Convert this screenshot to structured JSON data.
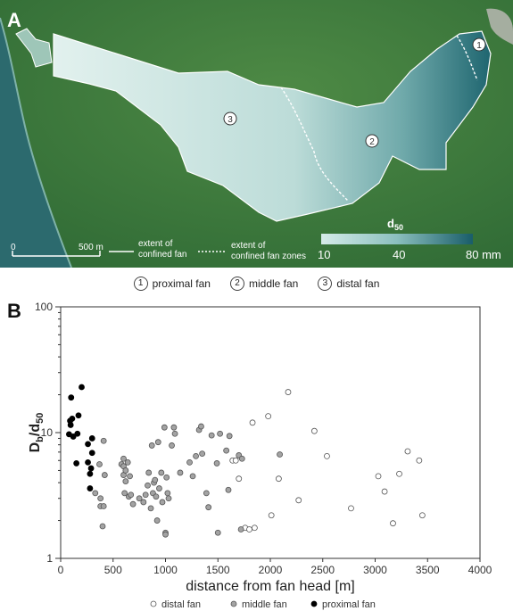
{
  "panel_a": {
    "label": "A",
    "scalebar": {
      "zero": "0",
      "value": "500 m"
    },
    "legend_lines": {
      "solid": [
        "extent of",
        "confined fan"
      ],
      "dotted": [
        "extent of",
        "confined fan zones"
      ]
    },
    "colorbar": {
      "title": "d",
      "title_sub": "50",
      "ticks": [
        "10",
        "40",
        "80 mm"
      ],
      "colors": [
        "#d5ebe8",
        "#8bbfbe",
        "#195d69"
      ]
    },
    "zone_markers": [
      "1",
      "2",
      "3"
    ],
    "colors": {
      "sea": "#2c6a6e",
      "land": "#3f7a3a",
      "fan_light": "#d9eeea",
      "fan_dark": "#2a7078"
    }
  },
  "zones_legend": [
    {
      "num": "1",
      "label": "proximal fan"
    },
    {
      "num": "2",
      "label": "middle fan"
    },
    {
      "num": "3",
      "label": "distal fan"
    }
  ],
  "chart_data": {
    "panel_label": "B",
    "type": "scatter",
    "xlabel": "distance from fan head [m]",
    "ylabel_main": "D",
    "ylabel_sub1": "b",
    "ylabel_mid": "/d",
    "ylabel_sub2": "50",
    "xlim": [
      0,
      4000
    ],
    "ylim": [
      1,
      100
    ],
    "yscale": "log",
    "xticks": [
      0,
      500,
      1000,
      1500,
      2000,
      2500,
      3000,
      3500,
      4000
    ],
    "yticks": [
      1,
      10,
      100
    ],
    "legend_position": "bottom",
    "series": [
      {
        "name": "distal fan",
        "style": "open",
        "color": "#ffffff",
        "points": [
          [
            1640,
            6.0
          ],
          [
            1670,
            6.0
          ],
          [
            1700,
            4.3
          ],
          [
            1760,
            1.75
          ],
          [
            1800,
            1.7
          ],
          [
            1830,
            12.0
          ],
          [
            1850,
            1.75
          ],
          [
            1980,
            13.5
          ],
          [
            2010,
            2.2
          ],
          [
            2080,
            4.3
          ],
          [
            2170,
            21.0
          ],
          [
            2270,
            2.9
          ],
          [
            2420,
            10.3
          ],
          [
            2540,
            6.5
          ],
          [
            2770,
            2.5
          ],
          [
            3030,
            4.5
          ],
          [
            3090,
            3.4
          ],
          [
            3170,
            1.9
          ],
          [
            3230,
            4.7
          ],
          [
            3310,
            7.1
          ],
          [
            3420,
            6.0
          ],
          [
            3450,
            2.2
          ]
        ]
      },
      {
        "name": "middle fan",
        "style": "filled",
        "color": "#a3a3a3",
        "points": [
          [
            330,
            3.3
          ],
          [
            370,
            5.6
          ],
          [
            380,
            3.0
          ],
          [
            380,
            2.6
          ],
          [
            400,
            1.8
          ],
          [
            410,
            8.6
          ],
          [
            410,
            2.6
          ],
          [
            420,
            4.6
          ],
          [
            580,
            5.6
          ],
          [
            600,
            4.6
          ],
          [
            600,
            5.4
          ],
          [
            600,
            6.2
          ],
          [
            610,
            3.3
          ],
          [
            620,
            4.1
          ],
          [
            620,
            5.0
          ],
          [
            640,
            5.8
          ],
          [
            650,
            3.1
          ],
          [
            660,
            4.5
          ],
          [
            670,
            3.2
          ],
          [
            690,
            2.7
          ],
          [
            750,
            3.0
          ],
          [
            790,
            2.8
          ],
          [
            810,
            3.2
          ],
          [
            830,
            3.8
          ],
          [
            840,
            4.8
          ],
          [
            860,
            2.5
          ],
          [
            870,
            7.9
          ],
          [
            880,
            3.3
          ],
          [
            890,
            4.0
          ],
          [
            900,
            4.2
          ],
          [
            910,
            3.1
          ],
          [
            920,
            2.0
          ],
          [
            930,
            8.4
          ],
          [
            940,
            3.6
          ],
          [
            960,
            4.8
          ],
          [
            970,
            2.8
          ],
          [
            990,
            11.0
          ],
          [
            1000,
            1.6
          ],
          [
            1000,
            1.55
          ],
          [
            1010,
            4.4
          ],
          [
            1020,
            3.3
          ],
          [
            1030,
            3.0
          ],
          [
            1060,
            7.9
          ],
          [
            1080,
            11.0
          ],
          [
            1090,
            9.8
          ],
          [
            1140,
            4.8
          ],
          [
            1230,
            5.8
          ],
          [
            1260,
            4.5
          ],
          [
            1290,
            6.5
          ],
          [
            1320,
            10.5
          ],
          [
            1340,
            11.2
          ],
          [
            1350,
            6.8
          ],
          [
            1390,
            3.3
          ],
          [
            1410,
            2.55
          ],
          [
            1440,
            9.5
          ],
          [
            1490,
            5.7
          ],
          [
            1500,
            1.6
          ],
          [
            1520,
            9.8
          ],
          [
            1580,
            7.2
          ],
          [
            1600,
            3.5
          ],
          [
            1610,
            9.4
          ],
          [
            1700,
            6.6
          ],
          [
            1720,
            1.7
          ],
          [
            1730,
            6.2
          ],
          [
            2090,
            6.7
          ]
        ]
      },
      {
        "name": "proximal fan",
        "style": "filled",
        "color": "#000000",
        "points": [
          [
            80,
            9.7
          ],
          [
            90,
            12.4
          ],
          [
            95,
            11.5
          ],
          [
            100,
            19.0
          ],
          [
            110,
            12.9
          ],
          [
            120,
            9.3
          ],
          [
            160,
            9.8
          ],
          [
            170,
            13.7
          ],
          [
            200,
            23.0
          ],
          [
            150,
            5.7
          ],
          [
            260,
            5.8
          ],
          [
            260,
            8.1
          ],
          [
            280,
            3.6
          ],
          [
            280,
            4.7
          ],
          [
            290,
            5.2
          ],
          [
            300,
            9.0
          ],
          [
            300,
            6.9
          ]
        ]
      }
    ]
  }
}
